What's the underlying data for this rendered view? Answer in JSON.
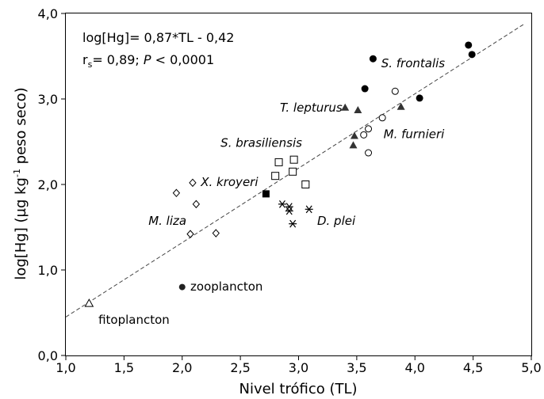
{
  "chart_data": {
    "type": "scatter",
    "xlabel": "Nivel trófico (TL)",
    "ylabel_parts": [
      "log[Hg] (µg kg",
      "-1",
      " peso seco)"
    ],
    "xlim": [
      1.0,
      5.0
    ],
    "ylim": [
      0.0,
      4.0
    ],
    "xticks": [
      "1,0",
      "1,5",
      "2,0",
      "2,5",
      "3,0",
      "3,5",
      "4,0",
      "4,5",
      "5,0"
    ],
    "yticks": [
      "0,0",
      "1,0",
      "2,0",
      "3,0",
      "4,0"
    ],
    "grid": false,
    "equation": "log[Hg]= 0,87*TL - 0,42",
    "stats": {
      "r_symbol": "r",
      "r_sub": "s",
      "r_value": "= 0,89; ",
      "p_symbol": "P",
      "p_value": " < 0,0001"
    },
    "regression": {
      "slope": 0.87,
      "intercept": -0.42,
      "x_range": [
        1.0,
        4.94
      ]
    },
    "series": [
      {
        "name": "fitoplancton",
        "marker": "triangle-open",
        "points": [
          [
            1.2,
            0.61
          ]
        ]
      },
      {
        "name": "zooplancton",
        "marker": "circle-filled-small",
        "points": [
          [
            2.0,
            0.8
          ]
        ]
      },
      {
        "name": "M. liza",
        "marker": "diamond-open",
        "points": [
          [
            1.95,
            1.9
          ],
          [
            2.09,
            2.02
          ],
          [
            2.12,
            1.77
          ],
          [
            2.07,
            1.42
          ],
          [
            2.29,
            1.43
          ]
        ]
      },
      {
        "name": "X. kroyeri",
        "marker": "square-filled",
        "points": [
          [
            2.72,
            1.89
          ]
        ]
      },
      {
        "name": "S. brasiliensis",
        "marker": "square-open",
        "points": [
          [
            2.8,
            2.1
          ],
          [
            2.83,
            2.26
          ],
          [
            2.96,
            2.29
          ],
          [
            2.95,
            2.15
          ],
          [
            3.06,
            2.0
          ]
        ]
      },
      {
        "name": "D. plei",
        "marker": "asterisk",
        "points": [
          [
            2.86,
            1.77
          ],
          [
            2.92,
            1.74
          ],
          [
            2.92,
            1.69
          ],
          [
            2.95,
            1.54
          ],
          [
            3.09,
            1.71
          ]
        ]
      },
      {
        "name": "T. lepturus",
        "marker": "triangle-filled",
        "points": [
          [
            3.4,
            2.9
          ],
          [
            3.51,
            2.87
          ],
          [
            3.48,
            2.57
          ],
          [
            3.47,
            2.46
          ],
          [
            3.88,
            2.91
          ]
        ]
      },
      {
        "name": "M. furnieri",
        "marker": "circle-open",
        "points": [
          [
            3.56,
            2.58
          ],
          [
            3.6,
            2.65
          ],
          [
            3.6,
            2.37
          ],
          [
            3.72,
            2.78
          ],
          [
            3.83,
            3.09
          ]
        ]
      },
      {
        "name": "S. frontalis",
        "marker": "circle-filled",
        "points": [
          [
            3.57,
            3.12
          ],
          [
            3.64,
            3.47
          ],
          [
            4.04,
            3.01
          ],
          [
            4.46,
            3.63
          ],
          [
            4.49,
            3.52
          ]
        ]
      }
    ],
    "labels": [
      {
        "text": "fitoplancton",
        "style": "group",
        "x": 1.28,
        "y": 0.37
      },
      {
        "text": "zooplancton",
        "style": "group",
        "x": 2.07,
        "y": 0.76
      },
      {
        "text": "M. liza",
        "style": "species",
        "x": 1.71,
        "y": 1.53
      },
      {
        "text": "X. kroyeri",
        "style": "species",
        "x": 2.16,
        "y": 1.98
      },
      {
        "text": "S. brasiliensis",
        "style": "species",
        "x": 2.33,
        "y": 2.44
      },
      {
        "text": "D. plei",
        "style": "species",
        "x": 3.16,
        "y": 1.53
      },
      {
        "text": "T. lepturus",
        "style": "species",
        "x": 2.84,
        "y": 2.85
      },
      {
        "text": "M. furnieri",
        "style": "species",
        "x": 3.73,
        "y": 2.54
      },
      {
        "text": "S. frontalis",
        "style": "species",
        "x": 3.71,
        "y": 3.37
      }
    ]
  }
}
